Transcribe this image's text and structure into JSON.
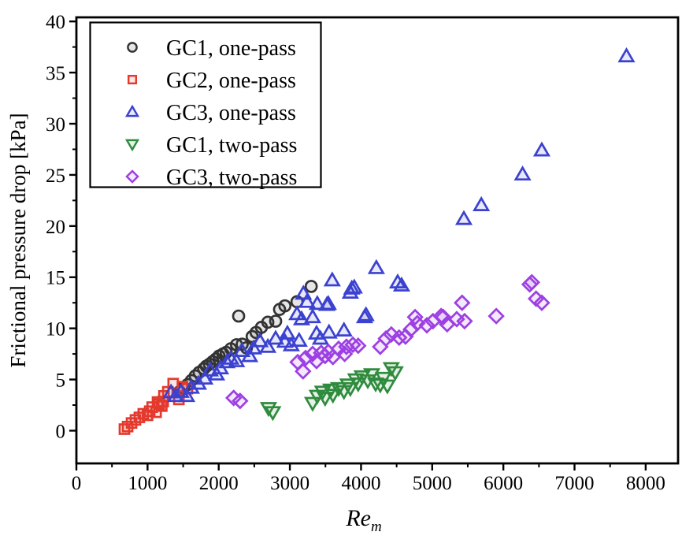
{
  "chart_data": {
    "type": "scatter",
    "title": "",
    "xlabel": "Re",
    "xlabel_subscript": "m",
    "ylabel": "Frictional pressure drop [kPa]",
    "grid": false,
    "legend_position": "top-left-inside",
    "x_axis": {
      "min": 0,
      "max": 8455,
      "major_ticks": [
        0,
        1000,
        2000,
        3000,
        4000,
        5000,
        6000,
        7000,
        8000
      ],
      "minor_ticks": [
        500,
        1500,
        2500,
        3500,
        4500,
        5500,
        6500,
        7500
      ]
    },
    "y_axis": {
      "min": -3.2,
      "max": 40.4,
      "major_ticks": [
        0,
        5,
        10,
        15,
        20,
        25,
        30,
        35,
        40
      ],
      "minor_ticks": [
        2.5,
        7.5,
        12.5,
        17.5,
        22.5,
        27.5,
        32.5,
        37.5
      ]
    },
    "series": [
      {
        "label": "GC1, one-pass",
        "marker": "circle",
        "color": "#333333",
        "points": [
          [
            1450,
            3.8
          ],
          [
            1505,
            4.2
          ],
          [
            1560,
            4.5
          ],
          [
            1615,
            4.9
          ],
          [
            1670,
            5.35
          ],
          [
            1725,
            5.7
          ],
          [
            1790,
            6.05
          ],
          [
            1825,
            6.3
          ],
          [
            1870,
            6.5
          ],
          [
            1915,
            6.75
          ],
          [
            1960,
            7.0
          ],
          [
            2005,
            7.3
          ],
          [
            2060,
            7.5
          ],
          [
            2105,
            7.65
          ],
          [
            2170,
            8.0
          ],
          [
            2250,
            8.4
          ],
          [
            2280,
            11.2
          ],
          [
            2330,
            8.45
          ],
          [
            2390,
            8.1
          ],
          [
            2470,
            9.2
          ],
          [
            2525,
            9.6
          ],
          [
            2600,
            10.1
          ],
          [
            2690,
            10.6
          ],
          [
            2800,
            10.7
          ],
          [
            2855,
            11.85
          ],
          [
            2930,
            12.2
          ],
          [
            3100,
            12.6
          ],
          [
            3300,
            14.1
          ]
        ]
      },
      {
        "label": "GC2, one-pass",
        "marker": "square",
        "color": "#e43a2e",
        "points": [
          [
            675,
            0.15
          ],
          [
            720,
            0.4
          ],
          [
            775,
            0.75
          ],
          [
            830,
            1.05
          ],
          [
            885,
            1.3
          ],
          [
            940,
            1.65
          ],
          [
            1000,
            1.5
          ],
          [
            1030,
            1.9
          ],
          [
            1065,
            2.3
          ],
          [
            1120,
            1.8
          ],
          [
            1140,
            2.8
          ],
          [
            1165,
            2.6
          ],
          [
            1200,
            2.4
          ],
          [
            1220,
            2.85
          ],
          [
            1230,
            3.4
          ],
          [
            1285,
            3.8
          ],
          [
            1360,
            4.6
          ],
          [
            1440,
            3.05
          ],
          [
            1490,
            4.3
          ],
          [
            1560,
            4.1
          ]
        ]
      },
      {
        "label": "GC3, one-pass",
        "marker": "triangle-up",
        "color": "#3b41d0",
        "points": [
          [
            1330,
            3.75
          ],
          [
            1395,
            3.4
          ],
          [
            1470,
            3.8
          ],
          [
            1550,
            3.4
          ],
          [
            1615,
            4.2
          ],
          [
            1715,
            4.6
          ],
          [
            1805,
            5.1
          ],
          [
            1880,
            5.9
          ],
          [
            1970,
            5.5
          ],
          [
            2025,
            6.1
          ],
          [
            2115,
            6.7
          ],
          [
            2170,
            7.05
          ],
          [
            2250,
            6.8
          ],
          [
            2325,
            7.8
          ],
          [
            2435,
            7.3
          ],
          [
            2490,
            8.05
          ],
          [
            2580,
            8.75
          ],
          [
            2690,
            8.2
          ],
          [
            2800,
            9.0
          ],
          [
            2930,
            8.7
          ],
          [
            2965,
            9.5
          ],
          [
            3020,
            8.35
          ],
          [
            3100,
            11.4
          ],
          [
            3130,
            8.8
          ],
          [
            3165,
            10.9
          ],
          [
            3190,
            13.4
          ],
          [
            3240,
            12.6
          ],
          [
            3320,
            11.1
          ],
          [
            3375,
            9.5
          ],
          [
            3385,
            12.4
          ],
          [
            3430,
            9.0
          ],
          [
            3520,
            12.3
          ],
          [
            3540,
            12.4
          ],
          [
            3550,
            9.6
          ],
          [
            3595,
            14.7
          ],
          [
            3760,
            9.8
          ],
          [
            3850,
            13.5
          ],
          [
            3870,
            13.9
          ],
          [
            3905,
            14.0
          ],
          [
            4050,
            11.1
          ],
          [
            4070,
            11.3
          ],
          [
            4215,
            15.9
          ],
          [
            4515,
            14.5
          ],
          [
            4570,
            14.2
          ],
          [
            5445,
            20.7
          ],
          [
            5690,
            22.05
          ],
          [
            6270,
            25.05
          ],
          [
            6540,
            27.4
          ],
          [
            7730,
            36.6
          ]
        ]
      },
      {
        "label": "GC1, two-pass",
        "marker": "triangle-down",
        "color": "#2f8b3d",
        "points": [
          [
            2700,
            2.2
          ],
          [
            2760,
            1.8
          ],
          [
            3320,
            2.7
          ],
          [
            3385,
            3.4
          ],
          [
            3460,
            3.8
          ],
          [
            3495,
            3.2
          ],
          [
            3575,
            4.0
          ],
          [
            3605,
            3.5
          ],
          [
            3685,
            4.15
          ],
          [
            3760,
            3.85
          ],
          [
            3815,
            4.5
          ],
          [
            3850,
            4.15
          ],
          [
            3925,
            5.0
          ],
          [
            3960,
            4.6
          ],
          [
            4015,
            5.3
          ],
          [
            4095,
            4.9
          ],
          [
            4150,
            5.5
          ],
          [
            4205,
            4.6
          ],
          [
            4270,
            4.5
          ],
          [
            4315,
            5.15
          ],
          [
            4370,
            4.4
          ],
          [
            4425,
            6.1
          ],
          [
            4480,
            5.7
          ]
        ]
      },
      {
        "label": "GC3, two-pass",
        "marker": "diamond",
        "color": "#9d3fe3",
        "points": [
          [
            2210,
            3.2
          ],
          [
            2300,
            2.9
          ],
          [
            3110,
            6.7
          ],
          [
            3185,
            5.8
          ],
          [
            3220,
            7.1
          ],
          [
            3320,
            7.5
          ],
          [
            3375,
            6.8
          ],
          [
            3440,
            7.6
          ],
          [
            3495,
            7.3
          ],
          [
            3540,
            7.7
          ],
          [
            3605,
            7.2
          ],
          [
            3685,
            8.0
          ],
          [
            3770,
            7.5
          ],
          [
            3795,
            8.2
          ],
          [
            3885,
            8.4
          ],
          [
            3960,
            8.3
          ],
          [
            4270,
            8.2
          ],
          [
            4350,
            9.0
          ],
          [
            4425,
            9.4
          ],
          [
            4535,
            9.1
          ],
          [
            4625,
            9.2
          ],
          [
            4700,
            9.9
          ],
          [
            4760,
            11.1
          ],
          [
            4790,
            10.5
          ],
          [
            4925,
            10.3
          ],
          [
            5010,
            10.7
          ],
          [
            5125,
            11.2
          ],
          [
            5155,
            11.1
          ],
          [
            5210,
            10.4
          ],
          [
            5345,
            10.9
          ],
          [
            5420,
            12.5
          ],
          [
            5455,
            10.7
          ],
          [
            5900,
            11.2
          ],
          [
            6370,
            14.3
          ],
          [
            6400,
            14.5
          ],
          [
            6460,
            12.9
          ],
          [
            6540,
            12.5
          ]
        ]
      }
    ],
    "style": {
      "frame_color": "#000000",
      "background": "#ffffff",
      "marker_fill_opacity": 0.12,
      "tick_label_size": 25,
      "legend_label_size": 28,
      "axis_title_size": 27
    }
  }
}
